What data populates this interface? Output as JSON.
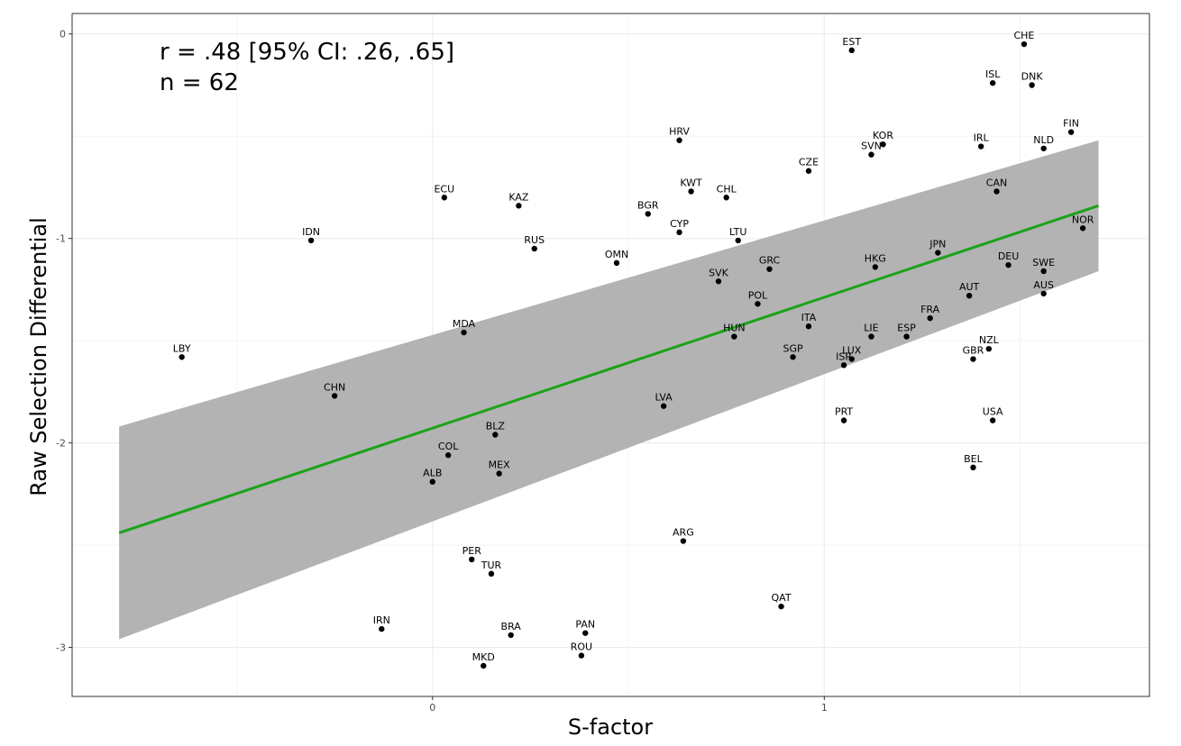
{
  "chart_data": {
    "type": "scatter",
    "title": "",
    "xlabel": "S-factor",
    "ylabel": "Raw Selection Differential",
    "xlim": [
      -0.92,
      1.83
    ],
    "ylim": [
      -3.24,
      0.1
    ],
    "x_ticks": [
      0,
      1
    ],
    "y_ticks": [
      0,
      -1,
      -2,
      -3
    ],
    "x_tick_labels": [
      "0",
      "1"
    ],
    "y_tick_labels": [
      "0",
      "-1",
      "-2",
      "-3"
    ],
    "grid": true,
    "annotations": [
      "r = .48 [95% CI: .26, .65]",
      "n = 62"
    ],
    "colors": {
      "fit_line": "#1aa31a",
      "ci_band": "#b3b3b3",
      "points": "#000000",
      "grid_major": "#ebebeb",
      "panel_border": "#333333"
    },
    "fit": {
      "type": "linear",
      "x": [
        -0.8,
        1.7
      ],
      "y": [
        -2.44,
        -0.84
      ],
      "ci_lower": [
        -2.96,
        -1.16
      ],
      "ci_upper": [
        -1.92,
        -0.52
      ]
    },
    "points": [
      {
        "label": "EST",
        "x": 1.07,
        "y": -0.08
      },
      {
        "label": "CHE",
        "x": 1.51,
        "y": -0.05
      },
      {
        "label": "ISL",
        "x": 1.43,
        "y": -0.24
      },
      {
        "label": "DNK",
        "x": 1.53,
        "y": -0.25
      },
      {
        "label": "FIN",
        "x": 1.63,
        "y": -0.48
      },
      {
        "label": "HRV",
        "x": 0.63,
        "y": -0.52
      },
      {
        "label": "KOR",
        "x": 1.15,
        "y": -0.54
      },
      {
        "label": "SVN",
        "x": 1.12,
        "y": -0.59
      },
      {
        "label": "IRL",
        "x": 1.4,
        "y": -0.55
      },
      {
        "label": "NLD",
        "x": 1.56,
        "y": -0.56
      },
      {
        "label": "CZE",
        "x": 0.96,
        "y": -0.67
      },
      {
        "label": "ECU",
        "x": 0.03,
        "y": -0.8
      },
      {
        "label": "KAZ",
        "x": 0.22,
        "y": -0.84
      },
      {
        "label": "KWT",
        "x": 0.66,
        "y": -0.77
      },
      {
        "label": "CHL",
        "x": 0.75,
        "y": -0.8
      },
      {
        "label": "CAN",
        "x": 1.44,
        "y": -0.77
      },
      {
        "label": "BGR",
        "x": 0.55,
        "y": -0.88
      },
      {
        "label": "CYP",
        "x": 0.63,
        "y": -0.97
      },
      {
        "label": "LTU",
        "x": 0.78,
        "y": -1.01
      },
      {
        "label": "IDN",
        "x": -0.31,
        "y": -1.01
      },
      {
        "label": "RUS",
        "x": 0.26,
        "y": -1.05
      },
      {
        "label": "NOR",
        "x": 1.66,
        "y": -0.95
      },
      {
        "label": "JPN",
        "x": 1.29,
        "y": -1.07
      },
      {
        "label": "OMN",
        "x": 0.47,
        "y": -1.12
      },
      {
        "label": "GRC",
        "x": 0.86,
        "y": -1.15
      },
      {
        "label": "HKG",
        "x": 1.13,
        "y": -1.14
      },
      {
        "label": "DEU",
        "x": 1.47,
        "y": -1.13
      },
      {
        "label": "SWE",
        "x": 1.56,
        "y": -1.16
      },
      {
        "label": "SVK",
        "x": 0.73,
        "y": -1.21
      },
      {
        "label": "AUT",
        "x": 1.37,
        "y": -1.28
      },
      {
        "label": "AUS",
        "x": 1.56,
        "y": -1.27
      },
      {
        "label": "POL",
        "x": 0.83,
        "y": -1.32
      },
      {
        "label": "FRA",
        "x": 1.27,
        "y": -1.39
      },
      {
        "label": "MDA",
        "x": 0.08,
        "y": -1.46
      },
      {
        "label": "ITA",
        "x": 0.96,
        "y": -1.43
      },
      {
        "label": "HUN",
        "x": 0.77,
        "y": -1.48
      },
      {
        "label": "LIE",
        "x": 1.12,
        "y": -1.48
      },
      {
        "label": "ESP",
        "x": 1.21,
        "y": -1.48
      },
      {
        "label": "NZL",
        "x": 1.42,
        "y": -1.54
      },
      {
        "label": "LBY",
        "x": -0.64,
        "y": -1.58
      },
      {
        "label": "SGP",
        "x": 0.92,
        "y": -1.58
      },
      {
        "label": "LUX",
        "x": 1.07,
        "y": -1.59
      },
      {
        "label": "GBR",
        "x": 1.38,
        "y": -1.59
      },
      {
        "label": "ISR",
        "x": 1.05,
        "y": -1.62
      },
      {
        "label": "CHN",
        "x": -0.25,
        "y": -1.77
      },
      {
        "label": "LVA",
        "x": 0.59,
        "y": -1.82
      },
      {
        "label": "PRT",
        "x": 1.05,
        "y": -1.89
      },
      {
        "label": "USA",
        "x": 1.43,
        "y": -1.89
      },
      {
        "label": "BLZ",
        "x": 0.16,
        "y": -1.96
      },
      {
        "label": "COL",
        "x": 0.04,
        "y": -2.06
      },
      {
        "label": "BEL",
        "x": 1.38,
        "y": -2.12
      },
      {
        "label": "MEX",
        "x": 0.17,
        "y": -2.15
      },
      {
        "label": "ALB",
        "x": 0.0,
        "y": -2.19
      },
      {
        "label": "ARG",
        "x": 0.64,
        "y": -2.48
      },
      {
        "label": "PER",
        "x": 0.1,
        "y": -2.57
      },
      {
        "label": "TUR",
        "x": 0.15,
        "y": -2.64
      },
      {
        "label": "QAT",
        "x": 0.89,
        "y": -2.8
      },
      {
        "label": "IRN",
        "x": -0.13,
        "y": -2.91
      },
      {
        "label": "BRA",
        "x": 0.2,
        "y": -2.94
      },
      {
        "label": "PAN",
        "x": 0.39,
        "y": -2.93
      },
      {
        "label": "ROU",
        "x": 0.38,
        "y": -3.04
      },
      {
        "label": "MKD",
        "x": 0.13,
        "y": -3.09
      }
    ]
  }
}
